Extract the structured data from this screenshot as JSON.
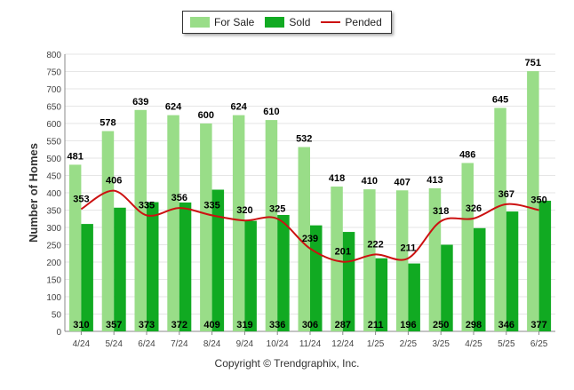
{
  "chart_data": {
    "type": "bar",
    "categories": [
      "4/24",
      "5/24",
      "6/24",
      "7/24",
      "8/24",
      "9/24",
      "10/24",
      "11/24",
      "12/24",
      "1/25",
      "2/25",
      "3/25",
      "4/25",
      "5/25",
      "6/25"
    ],
    "series": [
      {
        "name": "For Sale",
        "type": "bar",
        "color": "#99dd88",
        "values": [
          481,
          578,
          639,
          624,
          600,
          624,
          610,
          532,
          418,
          410,
          407,
          413,
          486,
          645,
          751
        ]
      },
      {
        "name": "Sold",
        "type": "bar",
        "color": "#11aa22",
        "values": [
          310,
          357,
          373,
          372,
          409,
          319,
          336,
          306,
          287,
          211,
          196,
          250,
          298,
          346,
          377
        ]
      },
      {
        "name": "Pended",
        "type": "line",
        "color": "#cc1111",
        "values": [
          353,
          406,
          335,
          356,
          335,
          320,
          325,
          239,
          201,
          222,
          211,
          318,
          326,
          367,
          350
        ]
      }
    ],
    "ylabel": "Number of Homes",
    "xlabel": "",
    "ylim": [
      0,
      800
    ],
    "yticks": [
      0,
      50,
      100,
      150,
      200,
      250,
      300,
      350,
      400,
      450,
      500,
      550,
      600,
      650,
      700,
      750,
      800
    ],
    "grid": true,
    "legend_position": "top-center"
  },
  "footer": {
    "copyright": "Copyright © Trendgraphix, Inc."
  }
}
